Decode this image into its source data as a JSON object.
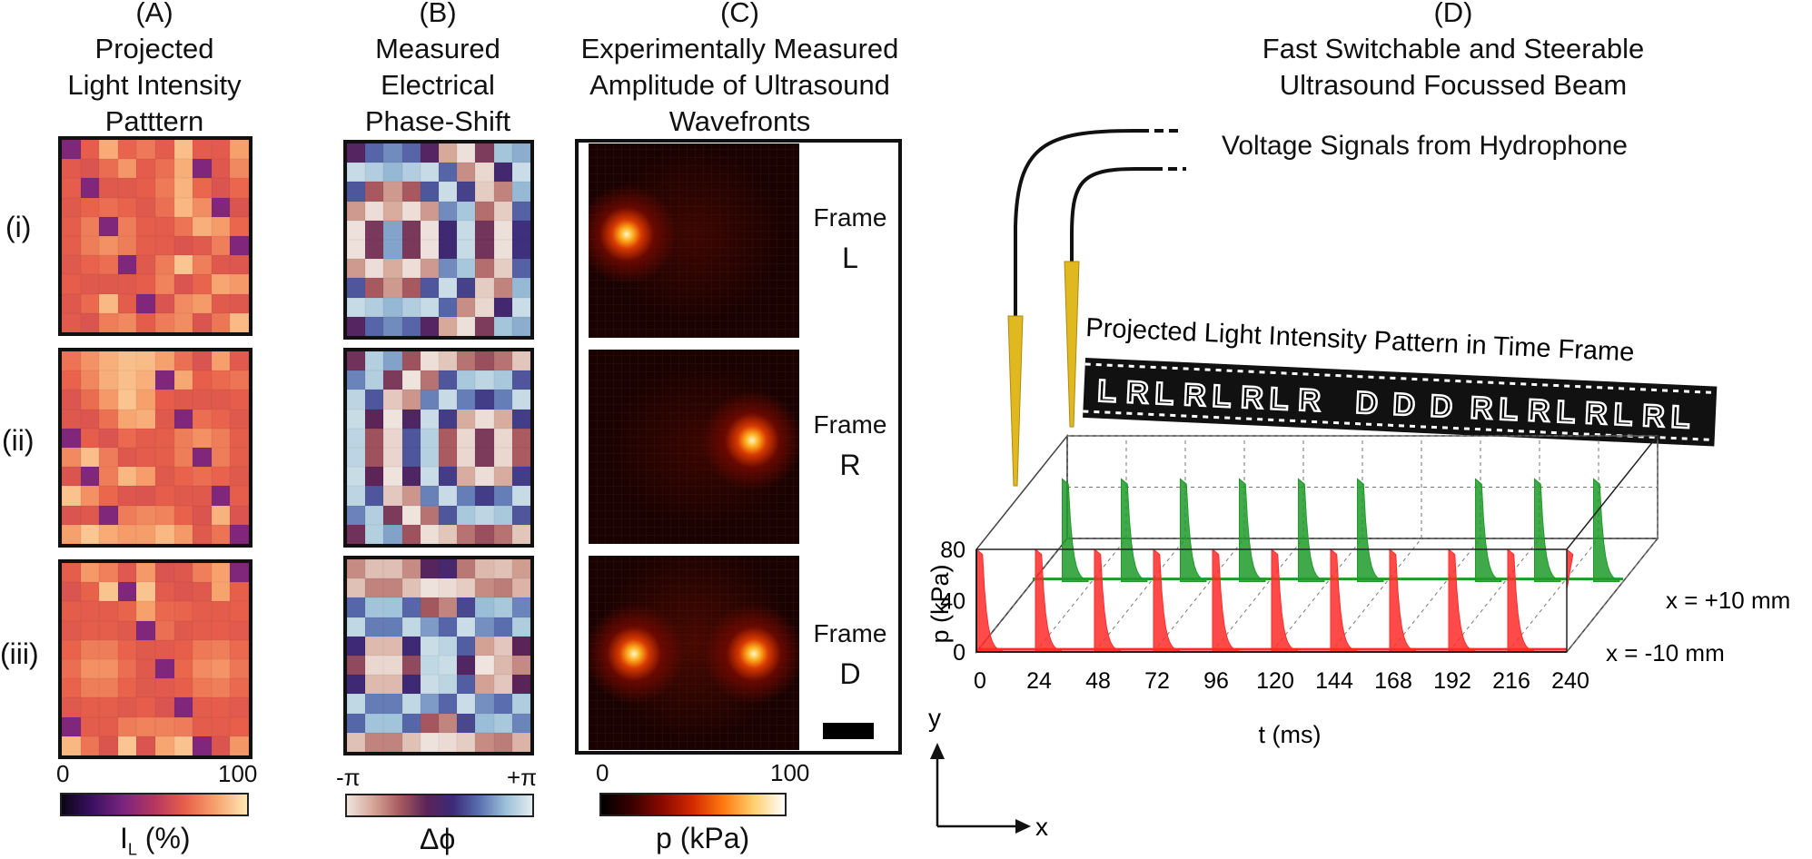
{
  "panel_a": {
    "letter": "(A)",
    "title_lines": [
      "Projected",
      "Light Intensity",
      "Patttern"
    ],
    "cbar_min": "0",
    "cbar_max": "100",
    "cbar_label_main": "I",
    "cbar_label_sub": "L",
    "cbar_label_unit": " (%)"
  },
  "panel_b": {
    "letter": "(B)",
    "title_lines": [
      "Measured",
      "Electrical",
      "Phase-Shift"
    ],
    "cbar_min": "-π",
    "cbar_max": "+π",
    "cbar_label": "Δϕ"
  },
  "panel_c": {
    "letter": "(C)",
    "title_lines": [
      "Experimentally Measured",
      "Amplitude of Ultrasound",
      "Wavefronts"
    ],
    "frames": [
      {
        "label": "Frame",
        "name": "L"
      },
      {
        "label": "Frame",
        "name": "R"
      },
      {
        "label": "Frame",
        "name": "D"
      }
    ],
    "cbar_min": "0",
    "cbar_max": "100",
    "cbar_label": "p (kPa)"
  },
  "panel_d": {
    "letter": "(D)",
    "title_lines": [
      "Fast Switchable and Steerable",
      "Ultrasound Focussed Beam"
    ],
    "hydrophone_label": "Voltage Signals from Hydrophone",
    "film_title": "Projected Light Intensity Pattern in Time Frame",
    "film_sequence": [
      "L",
      "R",
      "L",
      "R",
      "L",
      "R",
      "L",
      "R",
      "D",
      "D",
      "D",
      "R",
      "L",
      "R",
      "L",
      "R",
      "L",
      "R",
      "L"
    ],
    "y_axis_label": "p (kPa)",
    "y_ticks": [
      "0",
      "40",
      "80"
    ],
    "x_axis_label": "t (ms)",
    "x_ticks": [
      "0",
      "24",
      "48",
      "72",
      "96",
      "120",
      "144",
      "168",
      "192",
      "216",
      "240"
    ],
    "series_labels": [
      "x = +10 mm",
      "x = -10 mm"
    ],
    "axis_y": "y",
    "axis_x": "x"
  },
  "rows": [
    "(i)",
    "(ii)",
    "(iii)"
  ],
  "colors": {
    "series_front": "#ff2a2a",
    "series_back": "#1f9a2a",
    "needle": "#e0b820",
    "frame_border": "#111111"
  },
  "chart_data": {
    "type": "area",
    "title": "Fast Switchable and Steerable Ultrasound Focussed Beam",
    "xlabel": "t (ms)",
    "ylabel": "p (kPa)",
    "xlim": [
      0,
      240
    ],
    "ylim": [
      0,
      80
    ],
    "x_ticks": [
      0,
      24,
      48,
      72,
      96,
      120,
      144,
      168,
      192,
      216,
      240
    ],
    "y_ticks": [
      0,
      40,
      80
    ],
    "series": [
      {
        "name": "x = -10 mm",
        "pulse_starts": [
          0,
          24,
          48,
          72,
          96,
          120,
          144,
          168,
          192,
          216,
          240
        ],
        "peak": 80
      },
      {
        "name": "x = +10 mm",
        "pulse_starts": [
          12,
          36,
          60,
          84,
          108,
          132,
          180,
          204,
          228
        ],
        "peak": 80
      }
    ]
  }
}
